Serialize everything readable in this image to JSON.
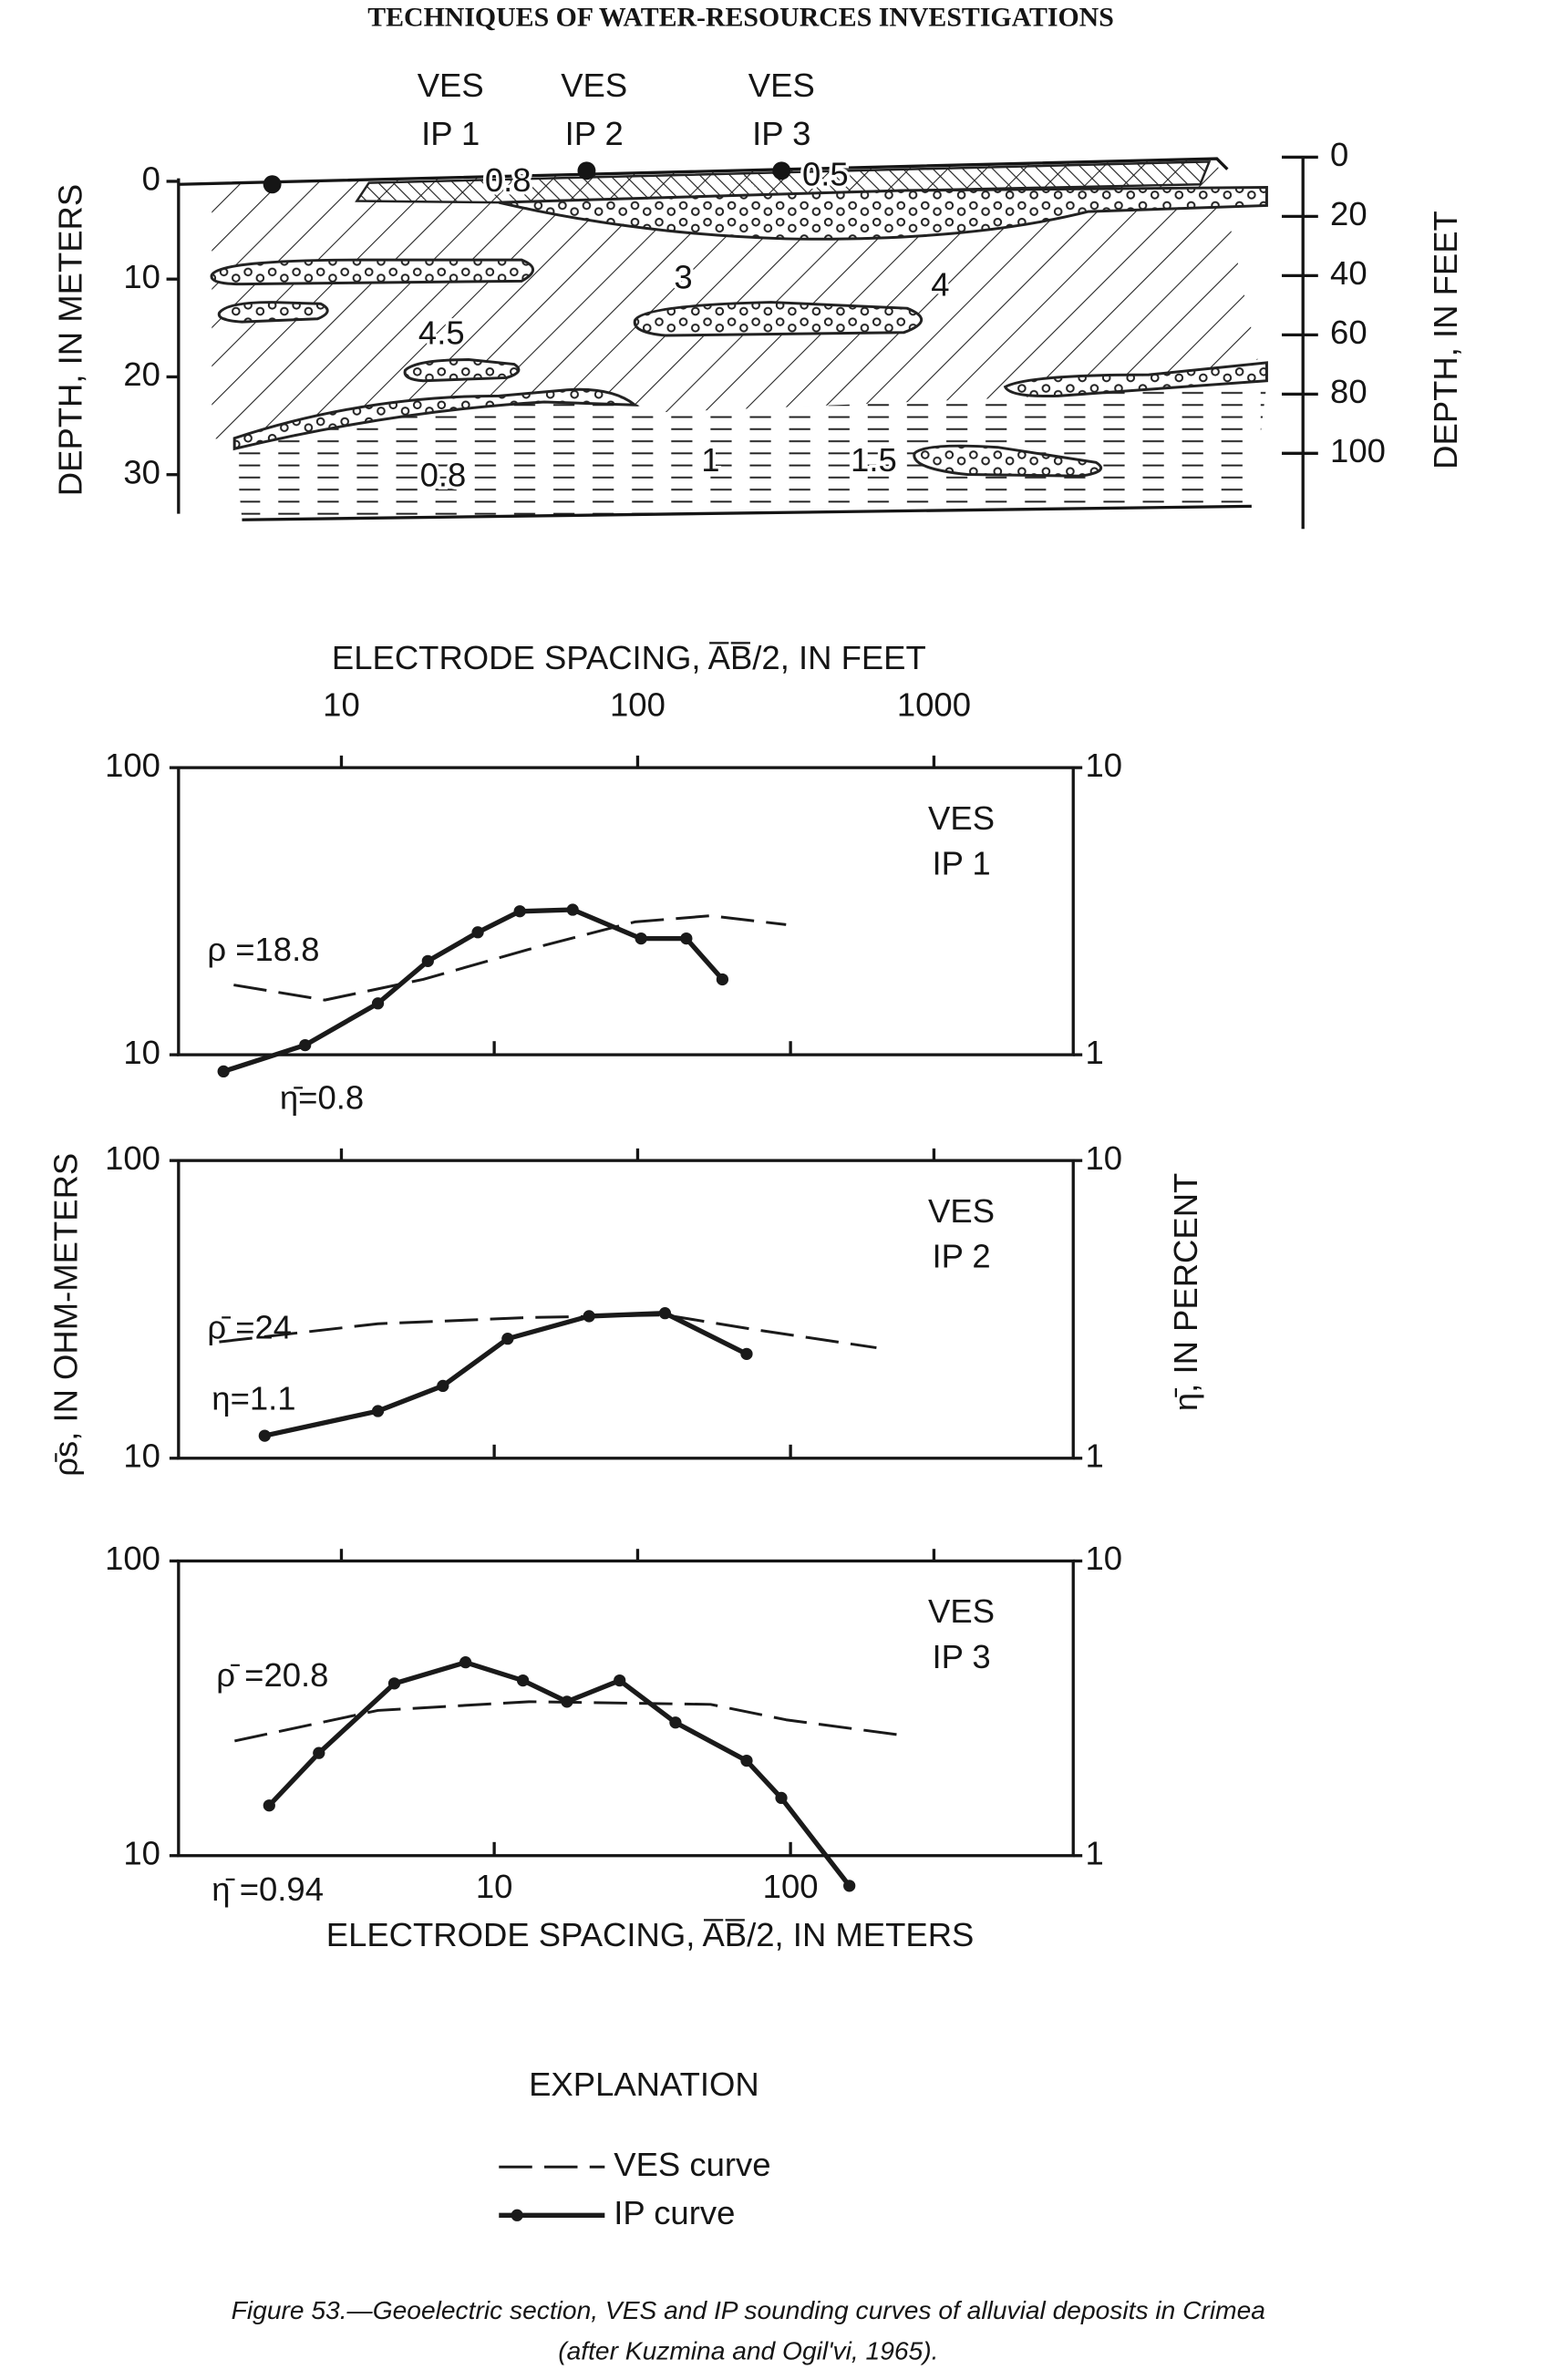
{
  "header": "TECHNIQUES OF WATER-RESOURCES INVESTIGATIONS",
  "section": {
    "soundings": [
      [
        "VES",
        "IP 1"
      ],
      [
        "VES",
        "IP 2"
      ],
      [
        "VES",
        "IP 3"
      ]
    ],
    "y_label": "DEPTH, IN METERS",
    "yticks": [
      0,
      10,
      20,
      30
    ],
    "y2_label": "DEPTH, IN FEET",
    "y2ticks": [
      0,
      20,
      40,
      60,
      80,
      100
    ],
    "resistivities": [
      "0.8",
      "0.5",
      "3",
      "4",
      "4.5",
      "0.8",
      "1",
      "1.5"
    ]
  },
  "axes": {
    "x_label": "ELECTRODE SPACING, A̅B̅/2, IN METERS",
    "x2_label": "ELECTRODE SPACING, A̅B̅/2, IN FEET",
    "y_label": "ρ̄s, IN OHM-METERS",
    "y2_label": "η̄, IN PERCENT"
  },
  "chart_data": [
    {
      "type": "line",
      "title_lines": [
        "VES",
        "IP 1"
      ],
      "log_x": true,
      "log_y": true,
      "xlim": [
        0.86,
        900
      ],
      "xticks": [
        10,
        100
      ],
      "x_tick_labels": false,
      "x2lim": [
        2.82,
        2953
      ],
      "x2ticks": [
        10,
        100,
        1000
      ],
      "x2_tick_labels": true,
      "ylim": [
        10,
        100
      ],
      "yticks": [
        10,
        100
      ],
      "y2lim": [
        1,
        10
      ],
      "y2ticks": [
        1,
        10
      ],
      "series": [
        {
          "name": "VES curve",
          "style": "dashed",
          "color": "#1a1a1a",
          "x": [
            1.32,
            2.68,
            5.76,
            13.1,
            29.8,
            53.7,
            96.6
          ],
          "values": [
            17.5,
            15.5,
            18.3,
            23.3,
            29.0,
            30.5,
            28.4
          ]
        },
        {
          "name": "IP curve",
          "style": "solid-dots",
          "color": "#1a1a1a",
          "axis": "y2",
          "x": [
            1.22,
            2.3,
            4.05,
            5.97,
            8.8,
            12.2,
            18.4,
            31.3,
            44.5,
            58.9
          ],
          "values": [
            0.875,
            1.08,
            1.51,
            2.12,
            2.67,
            3.16,
            3.2,
            2.54,
            2.54,
            1.83
          ]
        }
      ],
      "annotations": [
        "ρ =18.8",
        "η̄=0.8"
      ]
    },
    {
      "type": "line",
      "title_lines": [
        "VES",
        "IP 2"
      ],
      "log_x": true,
      "log_y": true,
      "xlim": [
        0.86,
        900
      ],
      "xticks": [
        10,
        100
      ],
      "x_tick_labels": false,
      "x2lim": [
        2.82,
        2953
      ],
      "x2ticks": [
        10,
        100,
        1000
      ],
      "x2_tick_labels": false,
      "ylim": [
        10,
        100
      ],
      "yticks": [
        10,
        100
      ],
      "y2lim": [
        1,
        10
      ],
      "y2ticks": [
        1,
        10
      ],
      "series": [
        {
          "style": "dashed",
          "color": "#1a1a1a",
          "x": [
            1.18,
            4.05,
            13.1,
            37.7,
            76.4,
            195
          ],
          "values": [
            24.6,
            28.3,
            29.7,
            30.3,
            27.0,
            23.5
          ]
        },
        {
          "style": "solid-dots",
          "color": "#1a1a1a",
          "axis": "y2",
          "x": [
            1.68,
            4.05,
            6.71,
            11.1,
            20.9,
            37.7,
            71.1
          ],
          "values": [
            1.19,
            1.44,
            1.75,
            2.52,
            3.0,
            3.07,
            2.24
          ]
        }
      ],
      "annotations": [
        "ρ̄ =24",
        "η=1.1"
      ]
    },
    {
      "type": "line",
      "title_lines": [
        "VES",
        "IP 3"
      ],
      "log_x": true,
      "log_y": true,
      "xlim": [
        0.86,
        900
      ],
      "xticks": [
        10,
        100
      ],
      "x_tick_labels": true,
      "x2lim": [
        2.82,
        2953
      ],
      "x2ticks": [
        10,
        100,
        1000
      ],
      "x2_tick_labels": false,
      "ylim": [
        10,
        100
      ],
      "yticks": [
        10,
        100
      ],
      "y2lim": [
        1,
        10
      ],
      "y2ticks": [
        1,
        10
      ],
      "series": [
        {
          "style": "dashed",
          "color": "#1a1a1a",
          "x": [
            1.33,
            4.05,
            13.1,
            53.7,
            96.6,
            233
          ],
          "values": [
            24.5,
            31.1,
            33.3,
            32.6,
            28.9,
            25.7
          ]
        },
        {
          "style": "solid-dots",
          "color": "#1a1a1a",
          "axis": "y2",
          "x": [
            1.74,
            2.56,
            4.6,
            8.0,
            12.5,
            17.6,
            26.5,
            40.9,
            71.1,
            93.1,
            158
          ],
          "values": [
            1.48,
            2.23,
            3.84,
            4.53,
            3.93,
            3.33,
            3.93,
            2.83,
            2.1,
            1.57,
            0.79
          ]
        }
      ],
      "annotations": [
        "ρ̄ =20.8",
        "η̄ =0.94"
      ]
    }
  ],
  "explanation": {
    "title": "EXPLANATION"
  },
  "caption_lines": [
    "Figure 53.—Geoelectric section, VES and IP sounding curves of alluvial deposits in Crimea",
    "(after Kuzmina and Ogil'vi, 1965)."
  ]
}
